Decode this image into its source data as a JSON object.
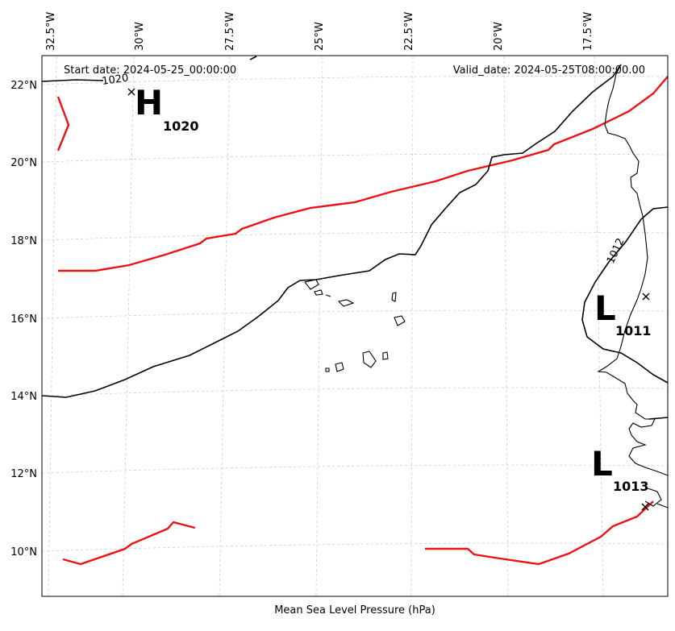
{
  "header": {
    "start_date": "Start date: 2024-05-25_00:00:00",
    "valid_date": "Valid_date: 2024-05-25T08:00:00.00"
  },
  "footer": {
    "xlabel": "Mean Sea Level Pressure (hPa)"
  },
  "axes": {
    "lon_ticks": [
      "32.5°W",
      "30°W",
      "27.5°W",
      "25°W",
      "22.5°W",
      "20°W",
      "17.5°W"
    ],
    "lat_ticks": [
      "22°N",
      "20°N",
      "18°N",
      "16°N",
      "14°N",
      "12°N",
      "10°N"
    ]
  },
  "isobar_labels": [
    "1020",
    "1012"
  ],
  "pressure_centers": [
    {
      "type": "H",
      "value": "1020"
    },
    {
      "type": "L",
      "value": "1011"
    },
    {
      "type": "L",
      "value": "1013"
    }
  ],
  "colors": {
    "red_isobar": "#ee1111",
    "black_isobar": "#000000",
    "grid": "#cccccc"
  }
}
